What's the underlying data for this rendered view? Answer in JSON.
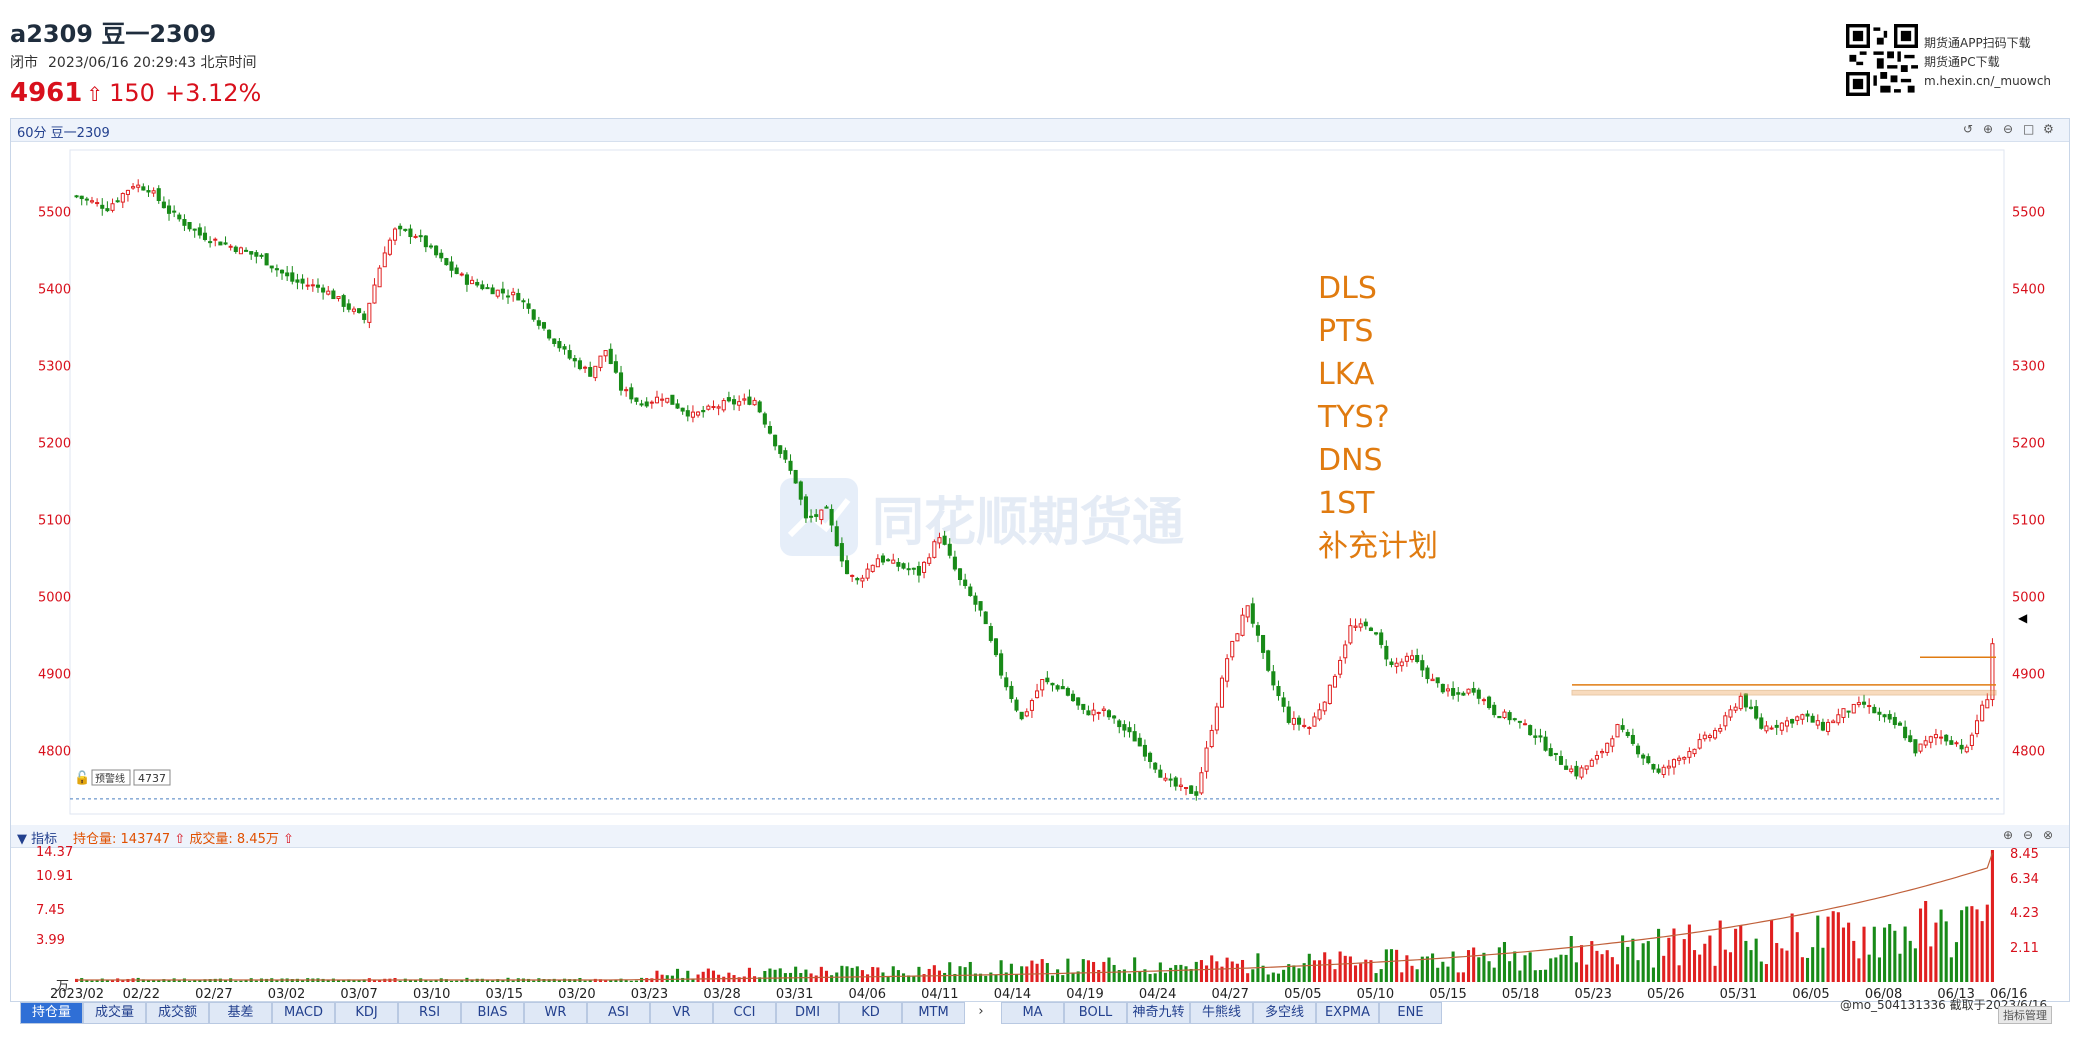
{
  "header": {
    "title": "a2309 豆一2309",
    "status": "闭市",
    "datetime": "2023/06/16 20:29:43 北京时间",
    "last_price": "4961",
    "change": "150",
    "change_pct": "+3.12%"
  },
  "download": {
    "app_text": "期货通APP扫码下载",
    "pc_text": "期货通PC下载",
    "url": "m.hexin.cn/_muowch"
  },
  "main_pane": {
    "label": "60分 豆一2309",
    "watermark": "同花顺期货通",
    "alert_lock": "预警线",
    "alert_value": "4737",
    "annotations": [
      "DLS",
      "PTS",
      "LKA",
      "TYS?",
      "DNS",
      "1ST",
      "补充计划"
    ]
  },
  "indicator_pane": {
    "label": "指标",
    "open_interest_label": "持仓量:",
    "open_interest_value": "143747",
    "volume_label": "成交量:",
    "volume_value": "8.45万",
    "left_unit": "万"
  },
  "tabs": [
    "持仓量",
    "成交量",
    "成交额",
    "基差",
    "MACD",
    "KDJ",
    "RSI",
    "BIAS",
    "WR",
    "ASI",
    "VR",
    "CCI",
    "DMI",
    "KD",
    "MTM"
  ],
  "tabs2": [
    "MA",
    "BOLL",
    "神奇九转",
    "牛熊线",
    "多空线",
    "EXPMA",
    "ENE"
  ],
  "active_tab": "持仓量",
  "footer": {
    "user": "@mo_504131336",
    "captured": "截取于2023/6/16",
    "button": "指标管理"
  },
  "colors": {
    "up": "#e02020",
    "down": "#188a18",
    "axis_text": "#d8101c",
    "annotation": "#e07b10",
    "band": "#f0b070"
  },
  "chart_data": [
    {
      "type": "candlestick",
      "title": "60分 豆一2309",
      "ylim": [
        4720,
        5580
      ],
      "y_ticks": [
        4800,
        4900,
        5000,
        5100,
        5200,
        5300,
        5400,
        5500
      ],
      "x_labels": [
        "2023/02",
        "02/22",
        "02/27",
        "03/02",
        "03/07",
        "03/10",
        "03/15",
        "03/20",
        "03/23",
        "03/28",
        "03/31",
        "04/06",
        "04/11",
        "04/14",
        "04/19",
        "04/24",
        "04/27",
        "05/05",
        "05/10",
        "05/15",
        "05/18",
        "05/23",
        "05/26",
        "05/31",
        "06/05",
        "06/08",
        "06/13",
        "06/16"
      ],
      "close_anchors": [
        [
          0,
          5520
        ],
        [
          6,
          5505
        ],
        [
          11,
          5535
        ],
        [
          14,
          5530
        ],
        [
          18,
          5500
        ],
        [
          24,
          5470
        ],
        [
          30,
          5455
        ],
        [
          36,
          5440
        ],
        [
          42,
          5410
        ],
        [
          48,
          5400
        ],
        [
          54,
          5370
        ],
        [
          56,
          5360
        ],
        [
          60,
          5450
        ],
        [
          62,
          5475
        ],
        [
          66,
          5470
        ],
        [
          72,
          5430
        ],
        [
          76,
          5410
        ],
        [
          80,
          5400
        ],
        [
          86,
          5390
        ],
        [
          92,
          5340
        ],
        [
          96,
          5310
        ],
        [
          100,
          5290
        ],
        [
          103,
          5320
        ],
        [
          106,
          5270
        ],
        [
          110,
          5250
        ],
        [
          114,
          5260
        ],
        [
          120,
          5235
        ],
        [
          126,
          5250
        ],
        [
          132,
          5255
        ],
        [
          136,
          5200
        ],
        [
          140,
          5150
        ],
        [
          142,
          5100
        ],
        [
          146,
          5110
        ],
        [
          150,
          5030
        ],
        [
          152,
          5020
        ],
        [
          156,
          5050
        ],
        [
          160,
          5040
        ],
        [
          164,
          5030
        ],
        [
          168,
          5080
        ],
        [
          172,
          5020
        ],
        [
          176,
          4980
        ],
        [
          180,
          4900
        ],
        [
          184,
          4840
        ],
        [
          188,
          4890
        ],
        [
          192,
          4880
        ],
        [
          196,
          4850
        ],
        [
          200,
          4850
        ],
        [
          206,
          4815
        ],
        [
          210,
          4780
        ],
        [
          212,
          4760
        ],
        [
          215,
          4750
        ],
        [
          218,
          4745
        ],
        [
          220,
          4800
        ],
        [
          224,
          4920
        ],
        [
          228,
          4990
        ],
        [
          232,
          4900
        ],
        [
          236,
          4840
        ],
        [
          240,
          4830
        ],
        [
          244,
          4880
        ],
        [
          248,
          4960
        ],
        [
          252,
          4960
        ],
        [
          256,
          4910
        ],
        [
          260,
          4920
        ],
        [
          264,
          4890
        ],
        [
          268,
          4870
        ],
        [
          272,
          4880
        ],
        [
          276,
          4850
        ],
        [
          280,
          4840
        ],
        [
          284,
          4820
        ],
        [
          288,
          4790
        ],
        [
          292,
          4770
        ],
        [
          296,
          4790
        ],
        [
          300,
          4830
        ],
        [
          304,
          4800
        ],
        [
          308,
          4770
        ],
        [
          312,
          4790
        ],
        [
          316,
          4810
        ],
        [
          320,
          4830
        ],
        [
          324,
          4870
        ],
        [
          328,
          4830
        ],
        [
          332,
          4835
        ],
        [
          336,
          4845
        ],
        [
          340,
          4830
        ],
        [
          344,
          4850
        ],
        [
          348,
          4860
        ],
        [
          352,
          4840
        ],
        [
          355,
          4830
        ],
        [
          358,
          4800
        ],
        [
          362,
          4820
        ],
        [
          366,
          4810
        ],
        [
          368,
          4800
        ],
        [
          370,
          4840
        ],
        [
          372,
          4870
        ],
        [
          373,
          4940
        ]
      ],
      "reference_levels": {
        "band": [
          4872,
          4878
        ],
        "line1": 4880,
        "line2": 4921,
        "alert": 4737
      }
    },
    {
      "type": "bar",
      "title": "持仓量",
      "series": [
        {
          "name": "持仓量",
          "values": [
            143747
          ]
        },
        {
          "name": "成交量",
          "values": [
            8.45
          ]
        }
      ],
      "left_ticks": [
        3.99,
        7.45,
        10.91,
        14.37
      ],
      "right_ticks": [
        2.11,
        4.23,
        6.34,
        8.45
      ]
    }
  ]
}
